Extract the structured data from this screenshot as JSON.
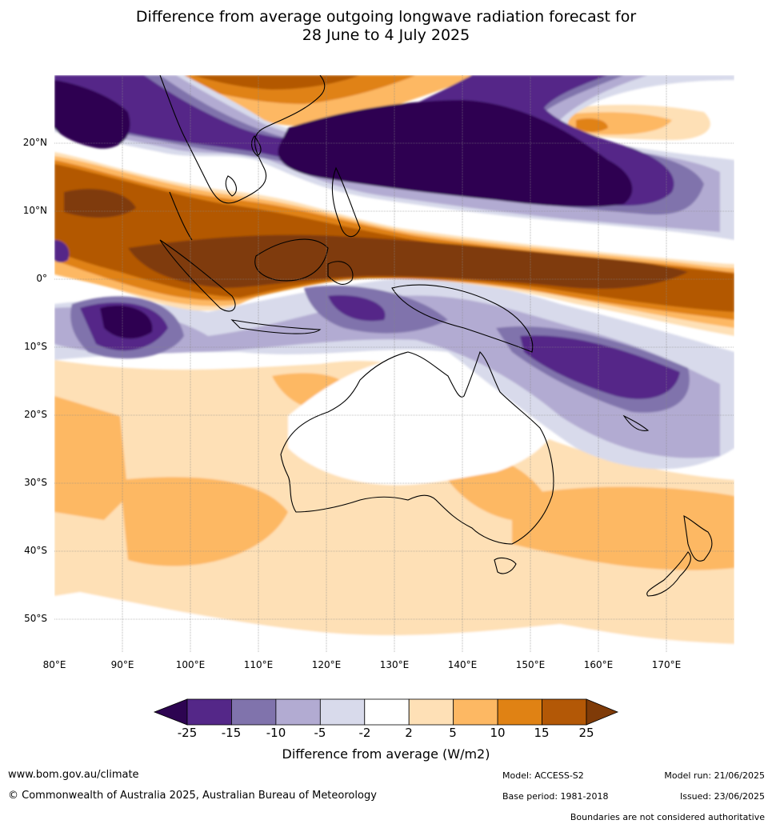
{
  "title": {
    "line1": "Difference from average outgoing longwave radiation forecast for",
    "line2": "28 June to 4 July 2025"
  },
  "map": {
    "projection": "equirectangular",
    "lon_range": [
      80,
      180
    ],
    "lat_range": [
      -55,
      30
    ],
    "graticule": true,
    "lat_labels": [
      "20°N",
      "10°N",
      "0°",
      "10°S",
      "20°S",
      "30°S",
      "40°S",
      "50°S"
    ],
    "lon_labels": [
      "80°E",
      "90°E",
      "100°E",
      "110°E",
      "120°E",
      "130°E",
      "140°E",
      "150°E",
      "160°E",
      "170°E"
    ]
  },
  "colorbar": {
    "tick_labels": [
      "-25",
      "-15",
      "-10",
      "-5",
      "-2",
      "2",
      "5",
      "10",
      "15",
      "25"
    ],
    "label": "Difference from average (W/m2)",
    "colors": [
      "#2d0451",
      "#542788",
      "#8073ac",
      "#b2abd2",
      "#d8daeb",
      "#ffffff",
      "#fee0b6",
      "#fdb863",
      "#e08214",
      "#b35806",
      "#7f3b08"
    ]
  },
  "footer": {
    "url": "www.bom.gov.au/climate",
    "copyright": "© Commonwealth of Australia 2025, Australian Bureau of Meteorology",
    "model": "Model: ACCESS-S2",
    "base_period": "Base period: 1981-2018",
    "model_run": "Model run: 21/06/2025",
    "issued": "Issued: 23/06/2025",
    "disclaimer": "Boundaries are not considered authoritative"
  }
}
